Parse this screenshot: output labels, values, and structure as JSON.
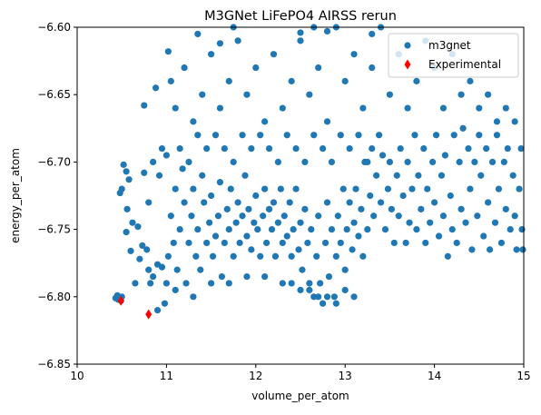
{
  "chart_data": {
    "type": "scatter",
    "title": "M3GNet LiFePO4 AIRSS rerun",
    "xlabel": "volume_per_atom",
    "ylabel": "energy_per_atom",
    "xlim": [
      10,
      15
    ],
    "ylim": [
      -6.85,
      -6.6
    ],
    "x_ticks": [
      10,
      11,
      12,
      13,
      14,
      15
    ],
    "x_tick_labels": [
      "10",
      "11",
      "12",
      "13",
      "14",
      "15"
    ],
    "y_ticks": [
      -6.85,
      -6.8,
      -6.75,
      -6.7,
      -6.65,
      -6.6
    ],
    "y_tick_labels": [
      "−6.85",
      "−6.80",
      "−6.75",
      "−6.70",
      "−6.65",
      "−6.60"
    ],
    "grid": false,
    "legend_placement": "top-right",
    "series": [
      {
        "name": "m3gnet",
        "marker": "circle",
        "color": "#1f77b4",
        "points": [
          [
            10.43,
            -6.801
          ],
          [
            10.46,
            -6.802
          ],
          [
            10.5,
            -6.8
          ],
          [
            10.45,
            -6.799
          ],
          [
            10.49,
            -6.803
          ],
          [
            10.52,
            -6.702
          ],
          [
            10.55,
            -6.707
          ],
          [
            10.58,
            -6.713
          ],
          [
            10.5,
            -6.72
          ],
          [
            10.56,
            -6.735
          ],
          [
            10.62,
            -6.745
          ],
          [
            10.68,
            -6.748
          ],
          [
            10.73,
            -6.762
          ],
          [
            10.78,
            -6.765
          ],
          [
            10.6,
            -6.766
          ],
          [
            10.7,
            -6.772
          ],
          [
            10.8,
            -6.78
          ],
          [
            10.85,
            -6.785
          ],
          [
            10.9,
            -6.776
          ],
          [
            10.95,
            -6.778
          ],
          [
            10.9,
            -6.81
          ],
          [
            10.98,
            -6.805
          ],
          [
            10.48,
            -6.723
          ],
          [
            10.55,
            -6.752
          ],
          [
            10.65,
            -6.79
          ],
          [
            10.82,
            -6.79
          ],
          [
            10.75,
            -6.708
          ],
          [
            10.8,
            -6.73
          ],
          [
            10.85,
            -6.7
          ],
          [
            10.92,
            -6.71
          ],
          [
            10.95,
            -6.69
          ],
          [
            11.0,
            -6.695
          ],
          [
            11.02,
            -6.77
          ],
          [
            11.05,
            -6.74
          ],
          [
            11.08,
            -6.76
          ],
          [
            11.1,
            -6.72
          ],
          [
            11.12,
            -6.78
          ],
          [
            11.15,
            -6.75
          ],
          [
            11.18,
            -6.705
          ],
          [
            11.2,
            -6.73
          ],
          [
            11.22,
            -6.79
          ],
          [
            11.25,
            -6.76
          ],
          [
            11.28,
            -6.74
          ],
          [
            11.3,
            -6.72
          ],
          [
            11.33,
            -6.77
          ],
          [
            11.35,
            -6.75
          ],
          [
            11.38,
            -6.78
          ],
          [
            11.4,
            -6.71
          ],
          [
            11.42,
            -6.73
          ],
          [
            11.45,
            -6.76
          ],
          [
            11.48,
            -6.745
          ],
          [
            11.5,
            -6.725
          ],
          [
            11.52,
            -6.77
          ],
          [
            11.55,
            -6.755
          ],
          [
            11.58,
            -6.74
          ],
          [
            11.6,
            -6.715
          ],
          [
            11.62,
            -6.785
          ],
          [
            11.65,
            -6.76
          ],
          [
            11.68,
            -6.735
          ],
          [
            11.7,
            -6.75
          ],
          [
            11.72,
            -6.72
          ],
          [
            11.75,
            -6.77
          ],
          [
            11.78,
            -6.745
          ],
          [
            11.8,
            -6.73
          ],
          [
            11.82,
            -6.76
          ],
          [
            11.85,
            -6.74
          ],
          [
            11.88,
            -6.71
          ],
          [
            11.9,
            -6.755
          ],
          [
            11.92,
            -6.735
          ],
          [
            11.95,
            -6.765
          ],
          [
            11.98,
            -6.745
          ],
          [
            12.0,
            -6.725
          ],
          [
            12.02,
            -6.75
          ],
          [
            12.05,
            -6.77
          ],
          [
            12.08,
            -6.74
          ],
          [
            12.1,
            -6.72
          ],
          [
            12.12,
            -6.76
          ],
          [
            12.15,
            -6.735
          ],
          [
            12.18,
            -6.75
          ],
          [
            12.2,
            -6.73
          ],
          [
            12.22,
            -6.77
          ],
          [
            12.25,
            -6.745
          ],
          [
            12.28,
            -6.72
          ],
          [
            12.3,
            -6.76
          ],
          [
            12.32,
            -6.74
          ],
          [
            12.35,
            -6.755
          ],
          [
            12.38,
            -6.73
          ],
          [
            12.4,
            -6.77
          ],
          [
            12.42,
            -6.75
          ],
          [
            12.45,
            -6.72
          ],
          [
            12.48,
            -6.765
          ],
          [
            12.5,
            -6.745
          ],
          [
            12.52,
            -6.78
          ],
          [
            12.55,
            -6.735
          ],
          [
            12.58,
            -6.76
          ],
          [
            12.6,
            -6.79
          ],
          [
            12.62,
            -6.75
          ],
          [
            12.65,
            -6.8
          ],
          [
            12.68,
            -6.77
          ],
          [
            12.7,
            -6.74
          ],
          [
            12.72,
            -6.79
          ],
          [
            12.75,
            -6.805
          ],
          [
            12.78,
            -6.76
          ],
          [
            12.8,
            -6.73
          ],
          [
            12.82,
            -6.785
          ],
          [
            12.85,
            -6.75
          ],
          [
            12.88,
            -6.8
          ],
          [
            12.9,
            -6.77
          ],
          [
            12.92,
            -6.74
          ],
          [
            12.95,
            -6.76
          ],
          [
            12.98,
            -6.72
          ],
          [
            13.0,
            -6.78
          ],
          [
            13.02,
            -6.75
          ],
          [
            13.05,
            -6.73
          ],
          [
            13.08,
            -6.765
          ],
          [
            13.1,
            -6.745
          ],
          [
            13.12,
            -6.72
          ],
          [
            13.15,
            -6.755
          ],
          [
            13.18,
            -6.735
          ],
          [
            13.2,
            -6.77
          ],
          [
            13.22,
            -6.7
          ],
          [
            13.25,
            -6.75
          ],
          [
            13.28,
            -6.725
          ],
          [
            13.3,
            -6.69
          ],
          [
            13.32,
            -6.74
          ],
          [
            13.35,
            -6.71
          ],
          [
            13.38,
            -6.68
          ],
          [
            13.4,
            -6.73
          ],
          [
            13.42,
            -6.695
          ],
          [
            13.45,
            -6.75
          ],
          [
            13.48,
            -6.72
          ],
          [
            13.5,
            -6.7
          ],
          [
            13.52,
            -6.735
          ],
          [
            13.55,
            -6.76
          ],
          [
            13.58,
            -6.71
          ],
          [
            13.6,
            -6.74
          ],
          [
            13.62,
            -6.69
          ],
          [
            13.65,
            -6.725
          ],
          [
            13.68,
            -6.76
          ],
          [
            13.7,
            -6.7
          ],
          [
            13.72,
            -6.745
          ],
          [
            13.75,
            -6.72
          ],
          [
            13.78,
            -6.68
          ],
          [
            13.8,
            -6.75
          ],
          [
            13.82,
            -6.71
          ],
          [
            13.85,
            -6.735
          ],
          [
            13.88,
            -6.69
          ],
          [
            13.9,
            -6.76
          ],
          [
            13.92,
            -6.72
          ],
          [
            13.95,
            -6.745
          ],
          [
            13.98,
            -6.7
          ],
          [
            14.0,
            -6.73
          ],
          [
            14.02,
            -6.68
          ],
          [
            14.05,
            -6.755
          ],
          [
            14.08,
            -6.71
          ],
          [
            14.1,
            -6.74
          ],
          [
            14.12,
            -6.695
          ],
          [
            14.15,
            -6.77
          ],
          [
            14.18,
            -6.725
          ],
          [
            14.2,
            -6.75
          ],
          [
            14.22,
            -6.68
          ],
          [
            14.25,
            -6.76
          ],
          [
            14.28,
            -6.7
          ],
          [
            14.3,
            -6.735
          ],
          [
            14.32,
            -6.675
          ],
          [
            14.35,
            -6.745
          ],
          [
            14.38,
            -6.69
          ],
          [
            14.4,
            -6.72
          ],
          [
            14.42,
            -6.765
          ],
          [
            14.45,
            -6.7
          ],
          [
            14.48,
            -6.74
          ],
          [
            14.5,
            -6.68
          ],
          [
            14.52,
            -6.71
          ],
          [
            14.55,
            -6.755
          ],
          [
            14.58,
            -6.69
          ],
          [
            14.6,
            -6.73
          ],
          [
            14.62,
            -6.765
          ],
          [
            14.65,
            -6.7
          ],
          [
            14.68,
            -6.745
          ],
          [
            14.7,
            -6.68
          ],
          [
            14.72,
            -6.72
          ],
          [
            14.75,
            -6.76
          ],
          [
            14.78,
            -6.7
          ],
          [
            14.8,
            -6.735
          ],
          [
            14.82,
            -6.69
          ],
          [
            14.85,
            -6.75
          ],
          [
            14.88,
            -6.71
          ],
          [
            14.9,
            -6.74
          ],
          [
            14.92,
            -6.765
          ],
          [
            14.95,
            -6.72
          ],
          [
            14.97,
            -6.69
          ],
          [
            14.98,
            -6.75
          ],
          [
            14.99,
            -6.765
          ],
          [
            11.05,
            -6.64
          ],
          [
            11.1,
            -6.66
          ],
          [
            11.2,
            -6.63
          ],
          [
            11.3,
            -6.67
          ],
          [
            11.4,
            -6.65
          ],
          [
            11.5,
            -6.62
          ],
          [
            11.6,
            -6.66
          ],
          [
            11.7,
            -6.64
          ],
          [
            11.8,
            -6.61
          ],
          [
            11.9,
            -6.65
          ],
          [
            12.0,
            -6.63
          ],
          [
            12.1,
            -6.67
          ],
          [
            12.2,
            -6.62
          ],
          [
            12.3,
            -6.66
          ],
          [
            12.4,
            -6.64
          ],
          [
            12.5,
            -6.61
          ],
          [
            12.6,
            -6.65
          ],
          [
            12.7,
            -6.63
          ],
          [
            12.8,
            -6.67
          ],
          [
            12.9,
            -6.6
          ],
          [
            13.0,
            -6.64
          ],
          [
            13.1,
            -6.62
          ],
          [
            13.2,
            -6.66
          ],
          [
            13.3,
            -6.63
          ],
          [
            13.4,
            -6.6
          ],
          [
            13.5,
            -6.65
          ],
          [
            13.6,
            -6.62
          ],
          [
            13.7,
            -6.66
          ],
          [
            13.8,
            -6.64
          ],
          [
            13.9,
            -6.61
          ],
          [
            14.0,
            -6.63
          ],
          [
            14.1,
            -6.66
          ],
          [
            14.2,
            -6.62
          ],
          [
            14.3,
            -6.65
          ],
          [
            14.4,
            -6.64
          ],
          [
            14.5,
            -6.66
          ],
          [
            14.6,
            -6.65
          ],
          [
            14.7,
            -6.67
          ],
          [
            14.8,
            -6.66
          ],
          [
            14.9,
            -6.67
          ],
          [
            11.15,
            -6.69
          ],
          [
            11.25,
            -6.7
          ],
          [
            11.35,
            -6.68
          ],
          [
            11.45,
            -6.69
          ],
          [
            11.55,
            -6.68
          ],
          [
            11.65,
            -6.69
          ],
          [
            11.75,
            -6.7
          ],
          [
            11.85,
            -6.68
          ],
          [
            11.95,
            -6.69
          ],
          [
            12.05,
            -6.68
          ],
          [
            12.15,
            -6.69
          ],
          [
            12.25,
            -6.7
          ],
          [
            12.35,
            -6.68
          ],
          [
            12.45,
            -6.69
          ],
          [
            12.55,
            -6.7
          ],
          [
            12.65,
            -6.68
          ],
          [
            12.75,
            -6.69
          ],
          [
            12.85,
            -6.7
          ],
          [
            12.95,
            -6.68
          ],
          [
            13.05,
            -6.69
          ],
          [
            13.15,
            -6.68
          ],
          [
            13.25,
            -6.7
          ],
          [
            11.5,
            -6.79
          ],
          [
            11.7,
            -6.79
          ],
          [
            11.9,
            -6.785
          ],
          [
            12.1,
            -6.785
          ],
          [
            12.3,
            -6.79
          ],
          [
            12.5,
            -6.795
          ],
          [
            12.7,
            -6.8
          ],
          [
            12.9,
            -6.805
          ],
          [
            13.1,
            -6.8
          ],
          [
            13.0,
            -6.795
          ],
          [
            12.8,
            -6.8
          ],
          [
            12.6,
            -6.795
          ],
          [
            12.4,
            -6.79
          ],
          [
            11.0,
            -6.79
          ],
          [
            11.1,
            -6.795
          ],
          [
            11.3,
            -6.8
          ],
          [
            10.75,
            -6.658
          ],
          [
            10.88,
            -6.645
          ],
          [
            11.02,
            -6.618
          ],
          [
            11.35,
            -6.605
          ],
          [
            11.6,
            -6.612
          ],
          [
            11.75,
            -6.6
          ],
          [
            12.5,
            -6.604
          ],
          [
            12.65,
            -6.6
          ],
          [
            12.8,
            -6.603
          ],
          [
            13.3,
            -6.605
          ]
        ]
      },
      {
        "name": "Experimental",
        "marker": "diamond",
        "color": "#ff0000",
        "points": [
          [
            10.49,
            -6.803
          ],
          [
            10.8,
            -6.813
          ]
        ]
      }
    ]
  }
}
